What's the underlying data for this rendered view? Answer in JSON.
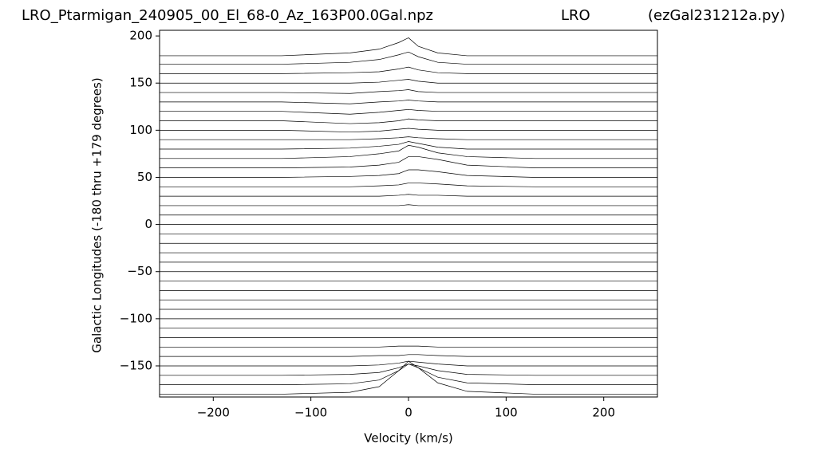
{
  "chart_data": {
    "type": "waterfall",
    "title": [
      "LRO_Ptarmigan_240905_00_El_68-0_Az_163P00.0Gal.npz",
      "LRO",
      "(ezGal231212a.py)"
    ],
    "xlabel": "Velocity (km/s)",
    "ylabel": "Galactic Longitudes    (-180 thru +179 degrees)",
    "xlim": [
      -255,
      255
    ],
    "ylim": [
      -183,
      206
    ],
    "xticks": [
      {
        "value": -200,
        "label": "−200"
      },
      {
        "value": -100,
        "label": "−100"
      },
      0,
      100,
      200
    ],
    "yticks": [
      {
        "value": -150,
        "label": "−150"
      },
      {
        "value": -100,
        "label": "−100"
      },
      {
        "value": -50,
        "label": "−50"
      },
      0,
      50,
      100,
      150,
      200
    ],
    "line_color": "#000000",
    "x": [
      -255,
      -130,
      -60,
      -30,
      -10,
      0,
      10,
      30,
      60,
      130,
      255
    ],
    "series": [
      {
        "values": [
          -180,
          -180,
          -178,
          -172,
          -155,
          -145,
          -152,
          -168,
          -177,
          -180,
          -180
        ]
      },
      {
        "values": [
          -170,
          -170,
          -169,
          -165,
          -155,
          -148,
          -152,
          -162,
          -168,
          -170,
          -170
        ]
      },
      {
        "values": [
          -160,
          -160,
          -159,
          -157,
          -152,
          -148,
          -150,
          -155,
          -159,
          -160,
          -160
        ]
      },
      {
        "values": [
          -150,
          -150,
          -150,
          -149,
          -147,
          -145,
          -146,
          -148,
          -150,
          -150,
          -150
        ]
      },
      {
        "values": [
          -140,
          -140,
          -140,
          -139,
          -139,
          -138,
          -138,
          -139,
          -140,
          -140,
          -140
        ]
      },
      {
        "values": [
          -130,
          -130,
          -130,
          -130,
          -129,
          -129,
          -129,
          -130,
          -130,
          -130,
          -130
        ]
      },
      {
        "values": [
          -120,
          -120,
          -120,
          -120,
          -120,
          -120,
          -120,
          -120,
          -120,
          -120,
          -120
        ]
      },
      {
        "values": [
          -110,
          -110,
          -110,
          -110,
          -110,
          -110,
          -110,
          -110,
          -110,
          -110,
          -110
        ]
      },
      {
        "values": [
          -100,
          -100,
          -100,
          -100,
          -100,
          -100,
          -100,
          -100,
          -100,
          -100,
          -100
        ]
      },
      {
        "values": [
          -90,
          -90,
          -90,
          -90,
          -90,
          -90,
          -90,
          -90,
          -90,
          -90,
          -90
        ]
      },
      {
        "values": [
          -80,
          -80,
          -80,
          -80,
          -80,
          -80,
          -80,
          -80,
          -80,
          -80,
          -80
        ]
      },
      {
        "values": [
          -70,
          -70,
          -70,
          -70,
          -70,
          -70,
          -70,
          -70,
          -70,
          -70,
          -70
        ]
      },
      {
        "values": [
          -60,
          -60,
          -60,
          -60,
          -60,
          -60,
          -60,
          -60,
          -60,
          -60,
          -60
        ]
      },
      {
        "values": [
          -50,
          -50,
          -50,
          -50,
          -50,
          -50,
          -50,
          -50,
          -50,
          -50,
          -50
        ]
      },
      {
        "values": [
          -40,
          -40,
          -40,
          -40,
          -40,
          -40,
          -40,
          -40,
          -40,
          -40,
          -40
        ]
      },
      {
        "values": [
          -30,
          -30,
          -30,
          -30,
          -30,
          -30,
          -30,
          -30,
          -30,
          -30,
          -30
        ]
      },
      {
        "values": [
          -20,
          -20,
          -20,
          -20,
          -20,
          -20,
          -20,
          -20,
          -20,
          -20,
          -20
        ]
      },
      {
        "values": [
          -10,
          -10,
          -10,
          -10,
          -10,
          -10,
          -10,
          -10,
          -10,
          -10,
          -10
        ]
      },
      {
        "values": [
          0,
          0,
          0,
          0,
          0,
          0,
          0,
          0,
          0,
          0,
          0
        ]
      },
      {
        "values": [
          10,
          10,
          10,
          10,
          10,
          10,
          10,
          10,
          10,
          10,
          10
        ]
      },
      {
        "values": [
          20,
          20,
          20,
          20,
          20,
          21,
          20,
          20,
          20,
          20,
          20
        ]
      },
      {
        "values": [
          30,
          30,
          30,
          30,
          31,
          32,
          31,
          31,
          30,
          30,
          30
        ]
      },
      {
        "values": [
          40,
          40,
          40,
          41,
          42,
          44,
          44,
          43,
          41,
          40,
          40
        ]
      },
      {
        "values": [
          50,
          50,
          51,
          52,
          54,
          58,
          58,
          56,
          52,
          50,
          50
        ]
      },
      {
        "values": [
          60,
          60,
          61,
          63,
          66,
          72,
          72,
          69,
          63,
          60,
          60
        ]
      },
      {
        "values": [
          70,
          70,
          72,
          75,
          78,
          84,
          82,
          76,
          72,
          70,
          70
        ]
      },
      {
        "values": [
          80,
          80,
          81,
          83,
          85,
          88,
          86,
          82,
          80,
          80,
          80
        ]
      },
      {
        "values": [
          90,
          90,
          90,
          91,
          92,
          93,
          92,
          91,
          90,
          90,
          90
        ]
      },
      {
        "values": [
          100,
          100,
          98,
          99,
          101,
          102,
          101,
          100,
          100,
          100,
          100
        ]
      },
      {
        "values": [
          110,
          110,
          107,
          108,
          110,
          112,
          111,
          110,
          110,
          110,
          110
        ]
      },
      {
        "values": [
          120,
          120,
          117,
          119,
          121,
          122,
          121,
          120,
          120,
          120,
          120
        ]
      },
      {
        "values": [
          130,
          130,
          128,
          130,
          131,
          132,
          131,
          130,
          130,
          130,
          130
        ]
      },
      {
        "values": [
          140,
          140,
          139,
          141,
          142,
          143,
          141,
          140,
          140,
          140,
          140
        ]
      },
      {
        "values": [
          150,
          150,
          150,
          151,
          153,
          154,
          152,
          150,
          150,
          150,
          150
        ]
      },
      {
        "values": [
          160,
          160,
          161,
          162,
          165,
          167,
          164,
          161,
          160,
          160,
          160
        ]
      },
      {
        "values": [
          170,
          170,
          172,
          175,
          180,
          183,
          178,
          172,
          170,
          170,
          170
        ]
      },
      {
        "values": [
          179,
          179,
          182,
          186,
          193,
          198,
          189,
          182,
          179,
          179,
          179
        ]
      }
    ]
  }
}
